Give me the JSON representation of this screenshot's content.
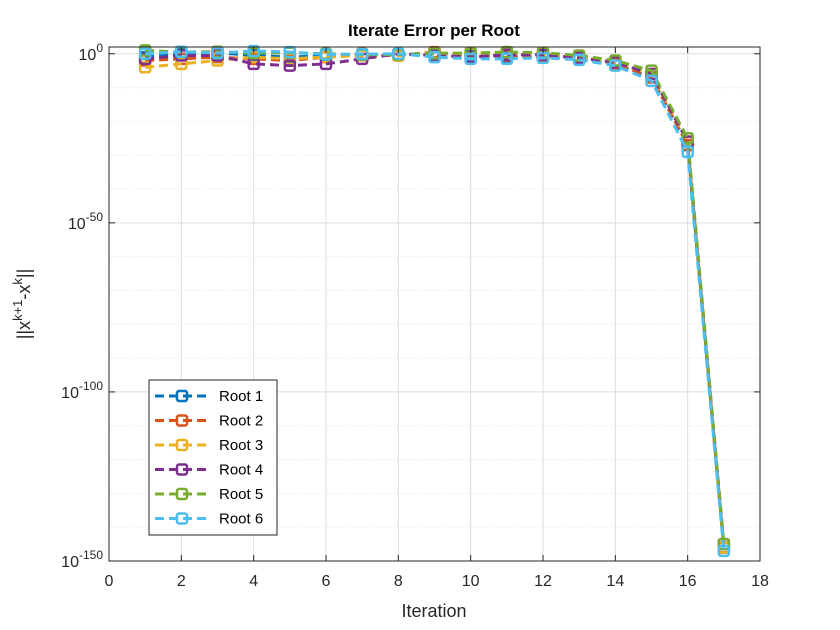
{
  "chart_data": {
    "type": "line",
    "title": "Iterate Error per Root",
    "xlabel": "Iteration",
    "ylabel": "||x^{k+1}-x^{k}||",
    "xlim": [
      0,
      18
    ],
    "xticks": [
      0,
      2,
      4,
      6,
      8,
      10,
      12,
      14,
      16,
      18
    ],
    "ylim_log10": [
      -150,
      2
    ],
    "yscale": "log",
    "yticks_exponent": [
      0,
      -50,
      -100,
      -150
    ],
    "grid": true,
    "legend_position": "bottom-left",
    "x": [
      1,
      2,
      3,
      4,
      5,
      6,
      7,
      8,
      9,
      10,
      11,
      12,
      13,
      14,
      15,
      16,
      17
    ],
    "series": [
      {
        "name": "Root 1",
        "color": "#0072BD",
        "marker": "square",
        "line": "dashed",
        "log10_values": [
          -1,
          0,
          0.3,
          -0.5,
          -1,
          -0.5,
          -0.3,
          -0.2,
          0.2,
          -0.5,
          -0.8,
          -1,
          -1.5,
          -3,
          -7,
          -27,
          -146
        ]
      },
      {
        "name": "Root 2",
        "color": "#D95319",
        "marker": "square",
        "line": "dashed",
        "log10_values": [
          -2,
          -1.5,
          -1,
          -1.5,
          -2,
          -1,
          0,
          -0.5,
          0.5,
          -1,
          -0.5,
          -0.8,
          -1.2,
          -3,
          -7,
          -27,
          -146
        ]
      },
      {
        "name": "Root 3",
        "color": "#EDB120",
        "marker": "square",
        "line": "dashed",
        "log10_values": [
          -4,
          -3,
          -2,
          -1,
          -1.5,
          -1,
          -0.5,
          -0.5,
          0.3,
          0,
          0.5,
          0,
          -1,
          -2.5,
          -6,
          -26,
          -146
        ]
      },
      {
        "name": "Root 4",
        "color": "#7E2F8E",
        "marker": "square",
        "line": "dashed",
        "log10_values": [
          -1.5,
          -0.5,
          -0.5,
          -3,
          -3.5,
          -3,
          -1.5,
          0,
          -0.5,
          -1,
          -0.3,
          -0.3,
          -1.2,
          -2.5,
          -6,
          -26,
          -145
        ]
      },
      {
        "name": "Root 5",
        "color": "#77AC30",
        "marker": "square",
        "line": "dashed",
        "log10_values": [
          1,
          0.5,
          0.6,
          0.2,
          0.3,
          0,
          -0.3,
          -0.2,
          0.1,
          0.2,
          0.5,
          0.3,
          -0.5,
          -2,
          -5,
          -25,
          -145
        ]
      },
      {
        "name": "Root 6",
        "color": "#4DBEEE",
        "marker": "square",
        "line": "dashed",
        "log10_values": [
          0,
          0.6,
          0.2,
          0.8,
          0.5,
          -0.2,
          -0.1,
          0,
          -1,
          -1.5,
          -1.5,
          -1.2,
          -1.8,
          -3.5,
          -8,
          -29,
          -147
        ]
      }
    ]
  }
}
